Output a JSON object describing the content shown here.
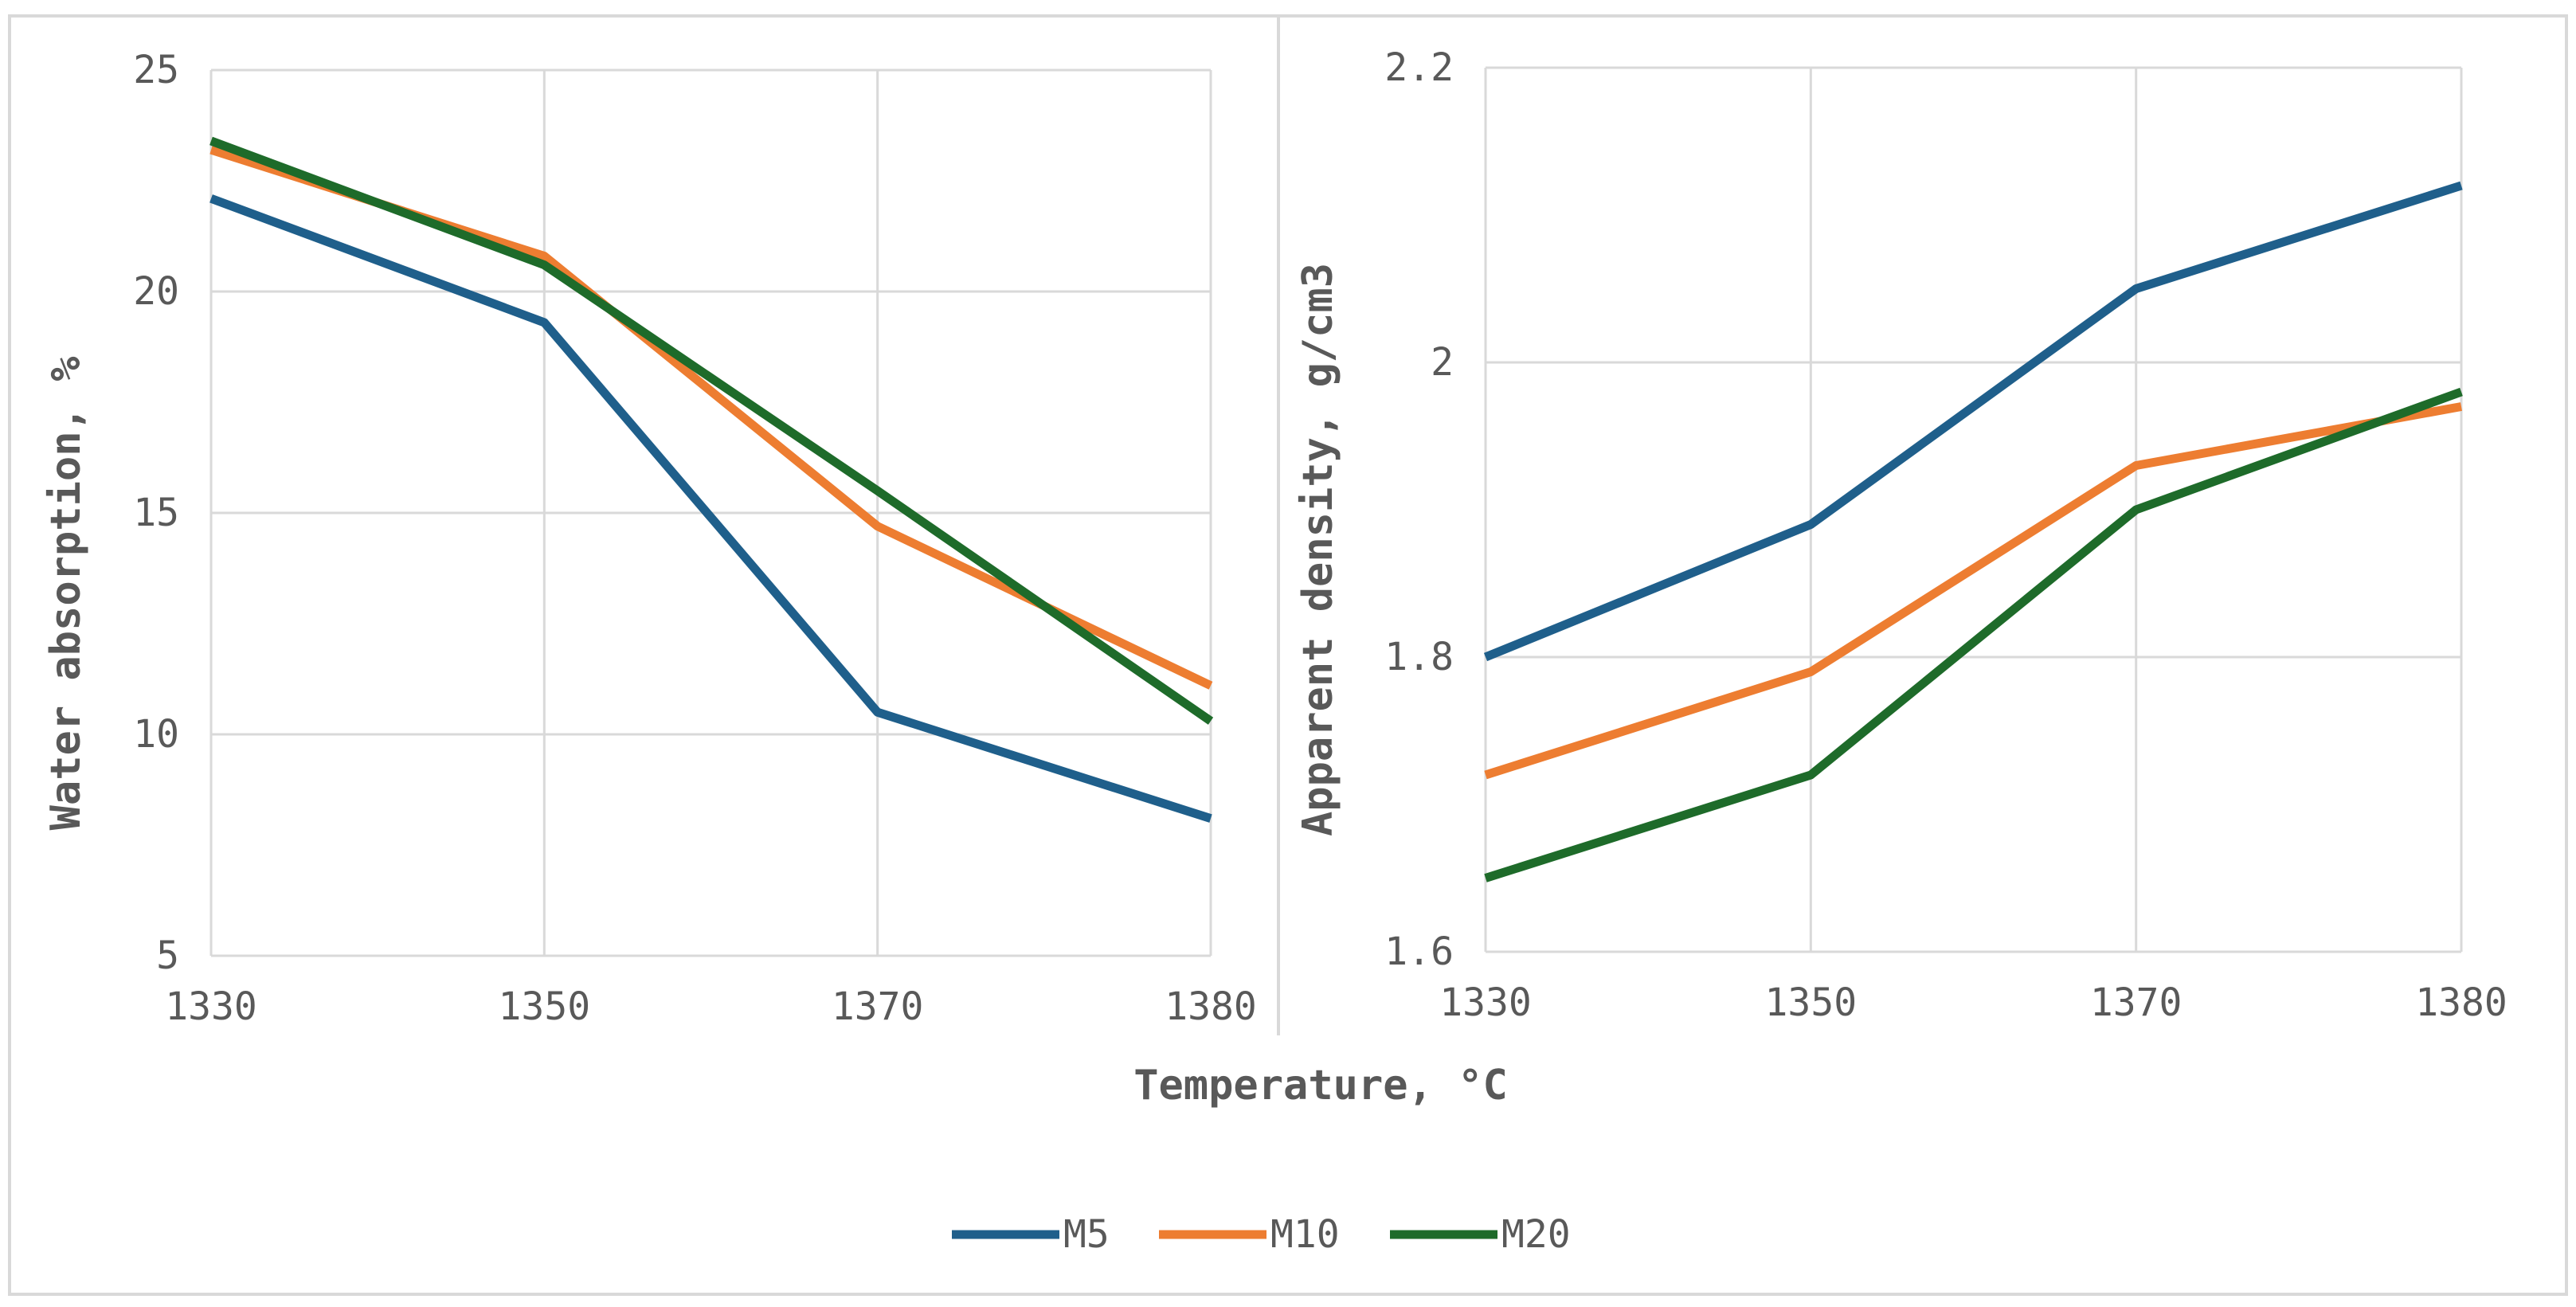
{
  "chart_data": [
    {
      "type": "line",
      "title": "",
      "xlabel": "",
      "ylabel": "Water absorption, %",
      "categories": [
        "1330",
        "1350",
        "1370",
        "1380"
      ],
      "ylim": [
        5,
        25
      ],
      "yticks": [
        "5",
        "10",
        "15",
        "20",
        "25"
      ],
      "grid": true,
      "series": [
        {
          "name": "M5",
          "values": [
            22.1,
            19.3,
            10.5,
            8.1
          ]
        },
        {
          "name": "M10",
          "values": [
            23.2,
            20.8,
            14.7,
            11.1
          ]
        },
        {
          "name": "M20",
          "values": [
            23.4,
            20.6,
            15.5,
            10.3
          ]
        }
      ]
    },
    {
      "type": "line",
      "title": "",
      "xlabel": "",
      "ylabel": "Apparent density, g/cm3",
      "categories": [
        "1330",
        "1350",
        "1370",
        "1380"
      ],
      "ylim": [
        1.6,
        2.2
      ],
      "yticks": [
        "1.6",
        "1.8",
        "2",
        "2.2"
      ],
      "grid": true,
      "series": [
        {
          "name": "M5",
          "values": [
            1.8,
            1.89,
            2.05,
            2.12
          ]
        },
        {
          "name": "M10",
          "values": [
            1.72,
            1.79,
            1.93,
            1.97
          ]
        },
        {
          "name": "M20",
          "values": [
            1.65,
            1.72,
            1.9,
            1.98
          ]
        }
      ]
    }
  ],
  "shared_xlabel": "Temperature, °C",
  "legend": {
    "position": "bottom",
    "items": [
      {
        "name": "M5",
        "color": "#1f5f8b"
      },
      {
        "name": "M10",
        "color": "#ed7d31"
      },
      {
        "name": "M20",
        "color": "#1e6b2a"
      }
    ]
  },
  "colors": {
    "M5": "#1f5f8b",
    "M10": "#ed7d31",
    "M20": "#1e6b2a",
    "grid": "#d9d9d9",
    "frame": "#d9d9d9",
    "text": "#595959"
  }
}
